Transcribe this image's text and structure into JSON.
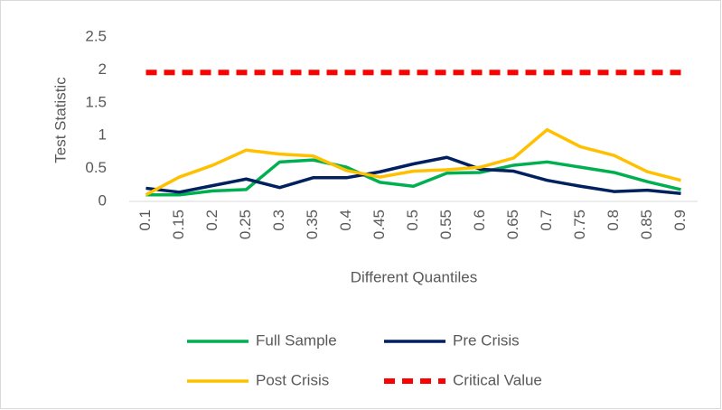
{
  "chart_data": {
    "type": "line",
    "x_label": "Different Quantiles",
    "y_label": "Test Statistic",
    "categories": [
      "0.1",
      "0.15",
      "0.2",
      "0.25",
      "0.3",
      "0.35",
      "0.4",
      "0.45",
      "0.5",
      "0.55",
      "0.6",
      "0.65",
      "0.7",
      "0.75",
      "0.8",
      "0.85",
      "0.9"
    ],
    "ylim": [
      0,
      2.5
    ],
    "yticks": [
      0,
      0.5,
      1,
      1.5,
      2,
      2.5
    ],
    "series": [
      {
        "name": "Full Sample",
        "color": "#00b050",
        "dashed": false,
        "values": [
          0.1,
          0.1,
          0.16,
          0.18,
          0.6,
          0.63,
          0.52,
          0.29,
          0.23,
          0.43,
          0.44,
          0.55,
          0.6,
          0.52,
          0.44,
          0.3,
          0.18
        ]
      },
      {
        "name": "Pre Crisis",
        "color": "#002060",
        "dashed": false,
        "values": [
          0.2,
          0.14,
          0.24,
          0.34,
          0.21,
          0.36,
          0.36,
          0.45,
          0.57,
          0.67,
          0.49,
          0.46,
          0.32,
          0.23,
          0.15,
          0.17,
          0.12
        ]
      },
      {
        "name": "Post Crisis",
        "color": "#ffc000",
        "dashed": false,
        "values": [
          0.1,
          0.37,
          0.55,
          0.78,
          0.72,
          0.69,
          0.47,
          0.37,
          0.46,
          0.48,
          0.52,
          0.66,
          1.09,
          0.83,
          0.7,
          0.45,
          0.32
        ]
      },
      {
        "name": "Critical Value",
        "color": "#ff0000",
        "dashed": true,
        "values": [
          1.96,
          1.96,
          1.96,
          1.96,
          1.96,
          1.96,
          1.96,
          1.96,
          1.96,
          1.96,
          1.96,
          1.96,
          1.96,
          1.96,
          1.96,
          1.96,
          1.96
        ]
      }
    ]
  }
}
